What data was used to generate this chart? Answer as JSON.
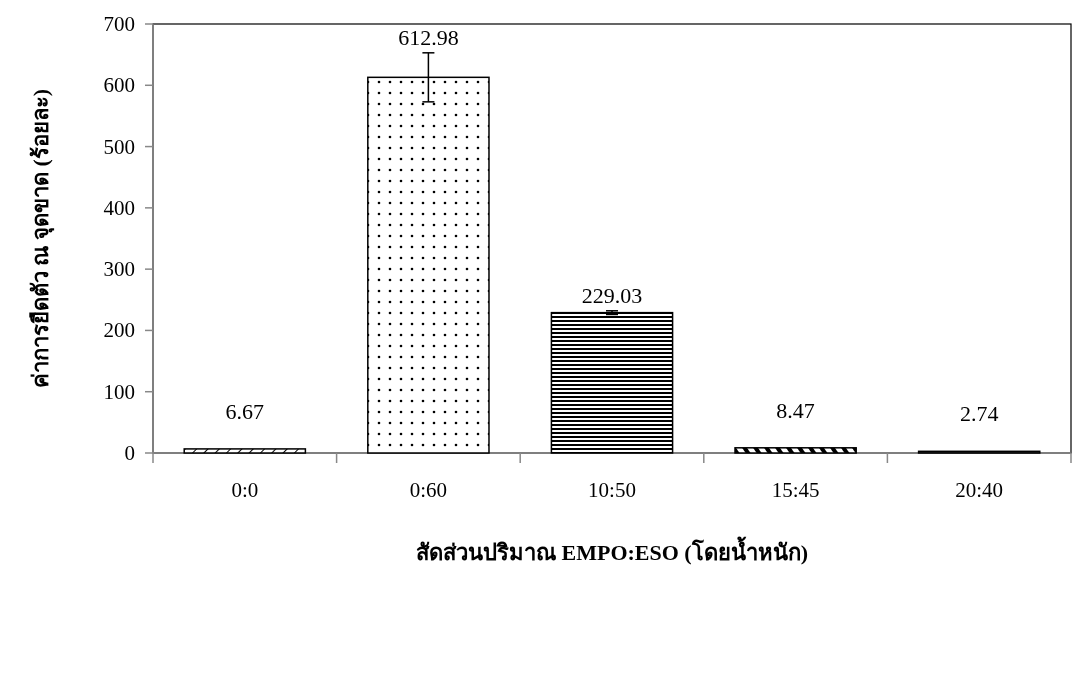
{
  "chart_data": {
    "type": "bar",
    "xlabel": "สัดส่วนปริมาณ EMPO:ESO (โดยน้ำหนัก)",
    "ylabel": "ค่าการยืดตัว ณ จุดขาด (ร้อยละ)",
    "categories": [
      "0:0",
      "0:60",
      "10:50",
      "15:45",
      "20:40"
    ],
    "values": [
      6.67,
      612.98,
      229.03,
      8.47,
      2.74
    ],
    "errors": [
      null,
      40,
      3,
      null,
      null
    ],
    "color": "#000000",
    "data_labels": true,
    "ylim": [
      0,
      700
    ],
    "yticks": [
      0,
      100,
      200,
      300,
      400,
      500,
      600,
      700
    ],
    "grid": false
  }
}
